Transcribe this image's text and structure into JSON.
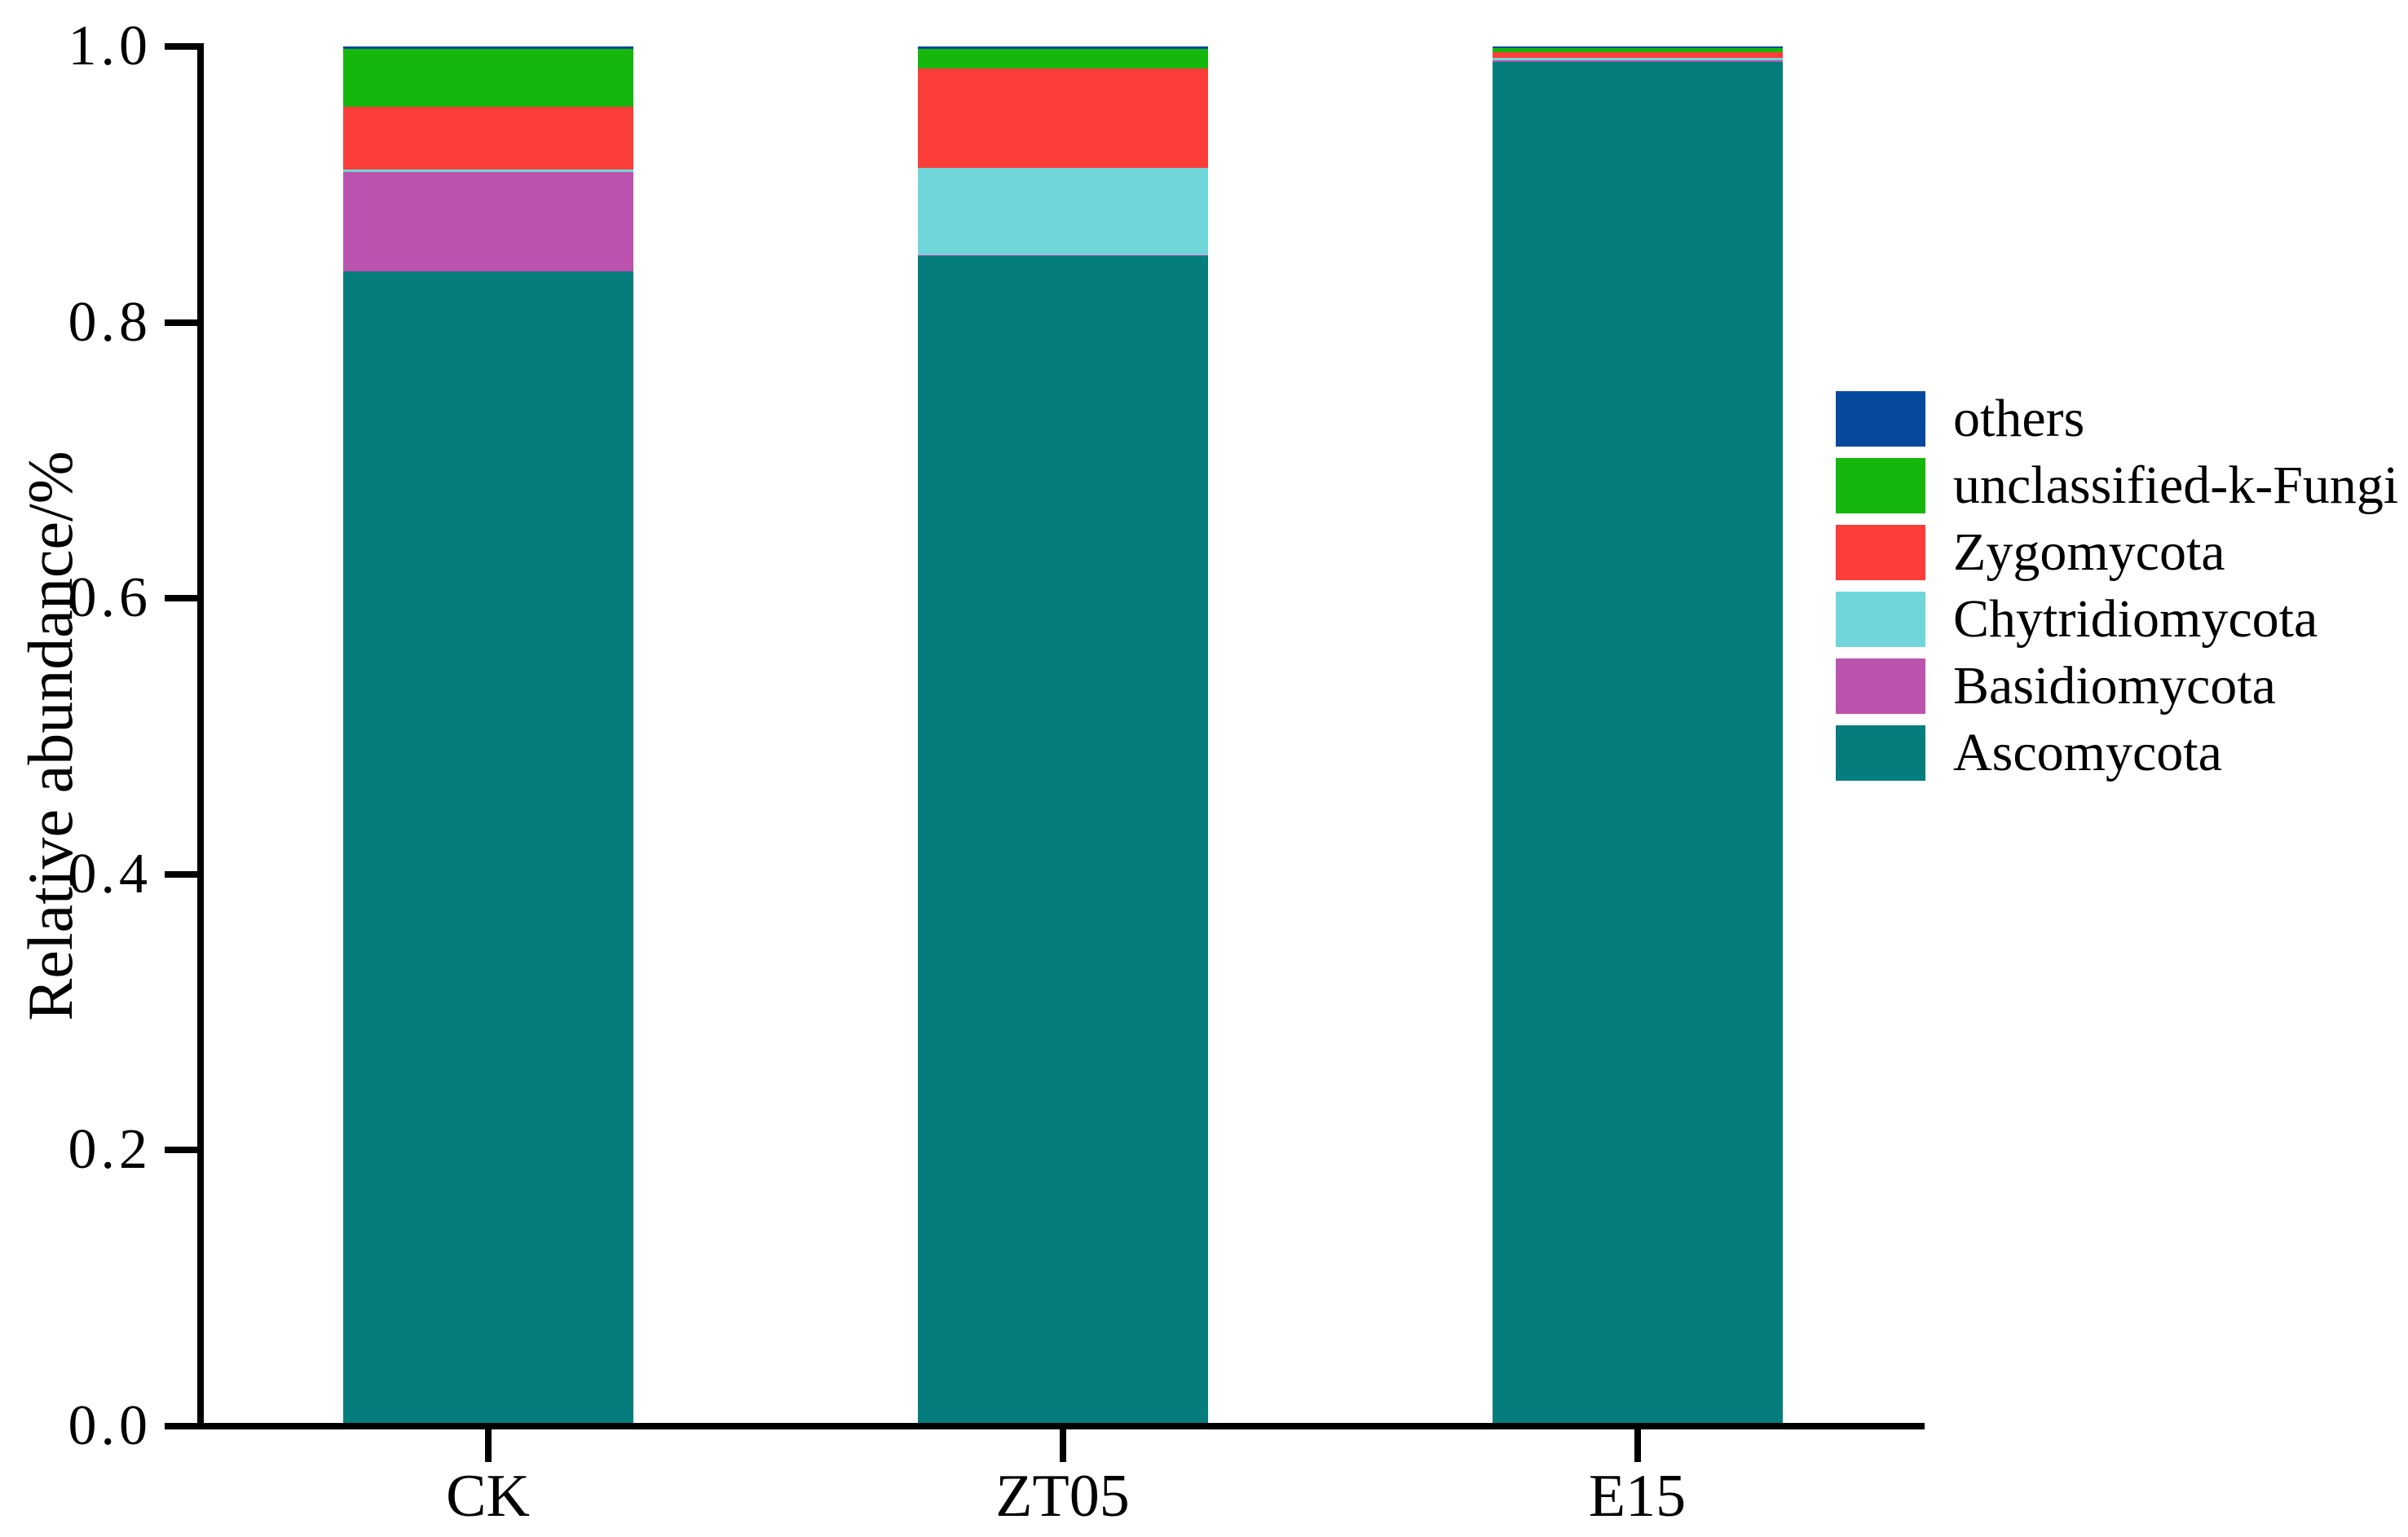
{
  "figure": {
    "background": "#ffffff",
    "axis_color": "#000000"
  },
  "chart_data": {
    "type": "bar",
    "stacked": true,
    "title": "",
    "xlabel": "",
    "ylabel": "Relative abundance/%",
    "categories": [
      "CK",
      "ZT05",
      "E15"
    ],
    "ylim": [
      0.0,
      1.0
    ],
    "ytick_labels": [
      "0.0",
      "0.2",
      "0.4",
      "0.6",
      "0.8",
      "1.0"
    ],
    "grid": false,
    "legend_position": "right",
    "legend_order_top_to_bottom": [
      "others",
      "unclassified-k-Fungi",
      "Zygomycota",
      "Chytridiomycota",
      "Basidiomycota",
      "Ascomycota"
    ],
    "stack_order_bottom_to_top": [
      "Ascomycota",
      "Basidiomycota",
      "Chytridiomycota",
      "Zygomycota",
      "unclassified-k-Fungi",
      "others"
    ],
    "series": [
      {
        "name": "others",
        "color": "#05489e",
        "values": [
          0.002,
          0.002,
          0.001
        ]
      },
      {
        "name": "unclassified-k-Fungi",
        "color": "#15b70c",
        "values": [
          0.042,
          0.014,
          0.003
        ]
      },
      {
        "name": "Zygomycota",
        "color": "#fc3e3a",
        "values": [
          0.045,
          0.072,
          0.004
        ]
      },
      {
        "name": "Chytridiomycota",
        "color": "#71d6da",
        "values": [
          0.002,
          0.063,
          0.002
        ]
      },
      {
        "name": "Basidiomycota",
        "color": "#bc53ae",
        "values": [
          0.072,
          0.001,
          0.001
        ]
      },
      {
        "name": "Ascomycota",
        "color": "#057d7d",
        "values": [
          0.837,
          0.848,
          0.989
        ]
      }
    ]
  }
}
